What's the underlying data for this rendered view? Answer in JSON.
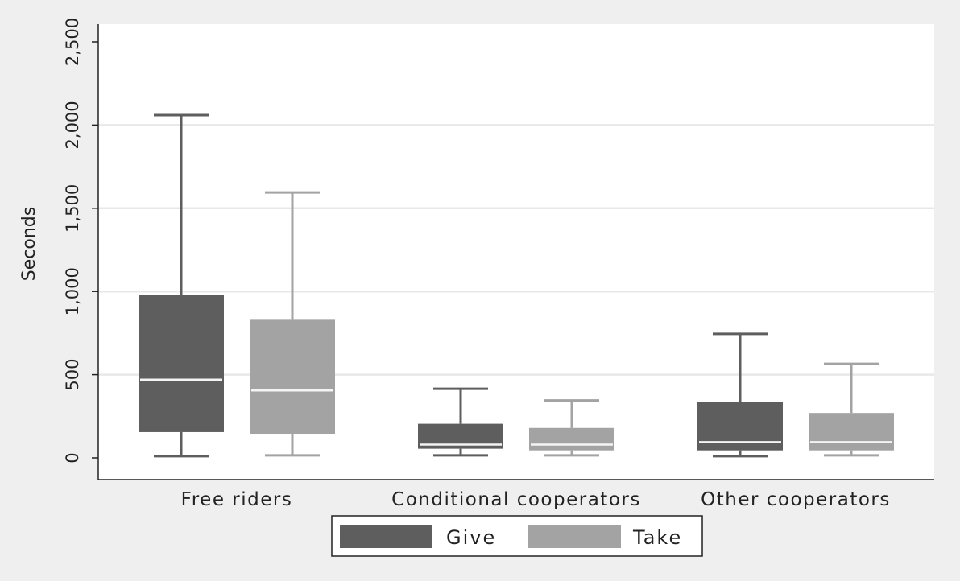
{
  "chart_data": {
    "type": "boxplot",
    "title": "",
    "xlabel": "",
    "ylabel": "Seconds",
    "ylim": [
      0,
      2500
    ],
    "yticks": [
      0,
      500,
      1000,
      1500,
      2000,
      2500
    ],
    "ytick_labels": [
      "0",
      "500",
      "1,000",
      "1,500",
      "2,000",
      "2,500"
    ],
    "grid": true,
    "legend_position": "bottom",
    "categories": [
      "Free riders",
      "Conditional cooperators",
      "Other cooperators"
    ],
    "series": [
      {
        "name": "Give",
        "color": "#5e5e5e",
        "boxes": [
          {
            "whisker_low": 10,
            "q1": 155,
            "median": 470,
            "q3": 980,
            "whisker_high": 2060
          },
          {
            "whisker_low": 15,
            "q1": 55,
            "median": 80,
            "q3": 205,
            "whisker_high": 415
          },
          {
            "whisker_low": 10,
            "q1": 45,
            "median": 95,
            "q3": 335,
            "whisker_high": 745
          }
        ]
      },
      {
        "name": "Take",
        "color": "#a3a3a3",
        "boxes": [
          {
            "whisker_low": 15,
            "q1": 145,
            "median": 405,
            "q3": 830,
            "whisker_high": 1595
          },
          {
            "whisker_low": 15,
            "q1": 45,
            "median": 80,
            "q3": 180,
            "whisker_high": 345
          },
          {
            "whisker_low": 15,
            "q1": 45,
            "median": 95,
            "q3": 270,
            "whisker_high": 565
          }
        ]
      }
    ]
  }
}
